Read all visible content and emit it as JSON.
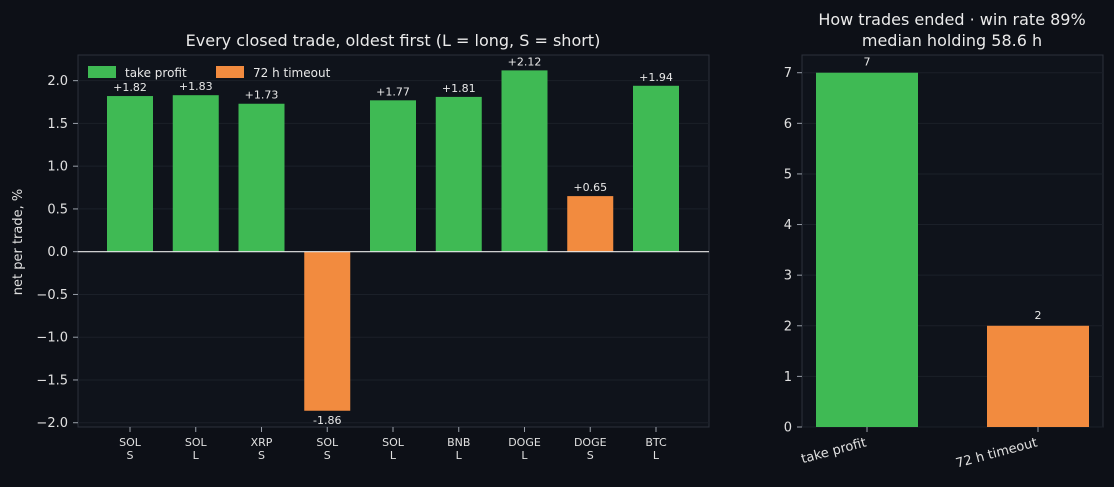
{
  "chart_data": [
    {
      "type": "bar",
      "title": "Every closed trade, oldest first (L = long, S = short)",
      "ylabel": "net per trade, %",
      "xlabel": "",
      "ylim": [
        -2.05,
        2.3
      ],
      "yticks": [
        -2.0,
        -1.5,
        -1.0,
        -0.5,
        0.0,
        0.5,
        1.0,
        1.5,
        2.0
      ],
      "ytick_labels": [
        "−2.0",
        "−1.5",
        "−1.0",
        "−0.5",
        "0.0",
        "0.5",
        "1.0",
        "1.5",
        "2.0"
      ],
      "grid": true,
      "legend": {
        "placement": "top-left",
        "entries": [
          {
            "name": "take profit",
            "color": "#3fba54"
          },
          {
            "name": "72 h timeout",
            "color": "#f28b3f"
          }
        ]
      },
      "zero_line_color": "#e8e8e8",
      "trades": [
        {
          "symbol": "SOL",
          "side": "S",
          "value": 1.82,
          "label": "+1.82",
          "outcome": "take profit"
        },
        {
          "symbol": "SOL",
          "side": "L",
          "value": 1.83,
          "label": "+1.83",
          "outcome": "take profit"
        },
        {
          "symbol": "XRP",
          "side": "S",
          "value": 1.73,
          "label": "+1.73",
          "outcome": "take profit"
        },
        {
          "symbol": "SOL",
          "side": "S",
          "value": -1.86,
          "label": "-1.86",
          "outcome": "72 h timeout"
        },
        {
          "symbol": "SOL",
          "side": "L",
          "value": 1.77,
          "label": "+1.77",
          "outcome": "take profit"
        },
        {
          "symbol": "BNB",
          "side": "L",
          "value": 1.81,
          "label": "+1.81",
          "outcome": "take profit"
        },
        {
          "symbol": "DOGE",
          "side": "L",
          "value": 2.12,
          "label": "+2.12",
          "outcome": "take profit"
        },
        {
          "symbol": "DOGE",
          "side": "S",
          "value": 0.65,
          "label": "+0.65",
          "outcome": "72 h timeout"
        },
        {
          "symbol": "BTC",
          "side": "L",
          "value": 1.94,
          "label": "+1.94",
          "outcome": "take profit"
        }
      ]
    },
    {
      "type": "bar",
      "title": "How trades ended · win rate 89%",
      "subtitle": "median holding 58.6 h",
      "xlabel": "",
      "ylabel": "",
      "ylim": [
        0,
        7.35
      ],
      "yticks": [
        0,
        1,
        2,
        3,
        4,
        5,
        6,
        7
      ],
      "ytick_labels": [
        "0",
        "1",
        "2",
        "3",
        "4",
        "5",
        "6",
        "7"
      ],
      "grid": true,
      "categories": [
        "take profit",
        "72 h timeout"
      ],
      "values": [
        7,
        2
      ],
      "value_labels": [
        "7",
        "2"
      ],
      "colors": [
        "#3fba54",
        "#f28b3f"
      ]
    }
  ]
}
